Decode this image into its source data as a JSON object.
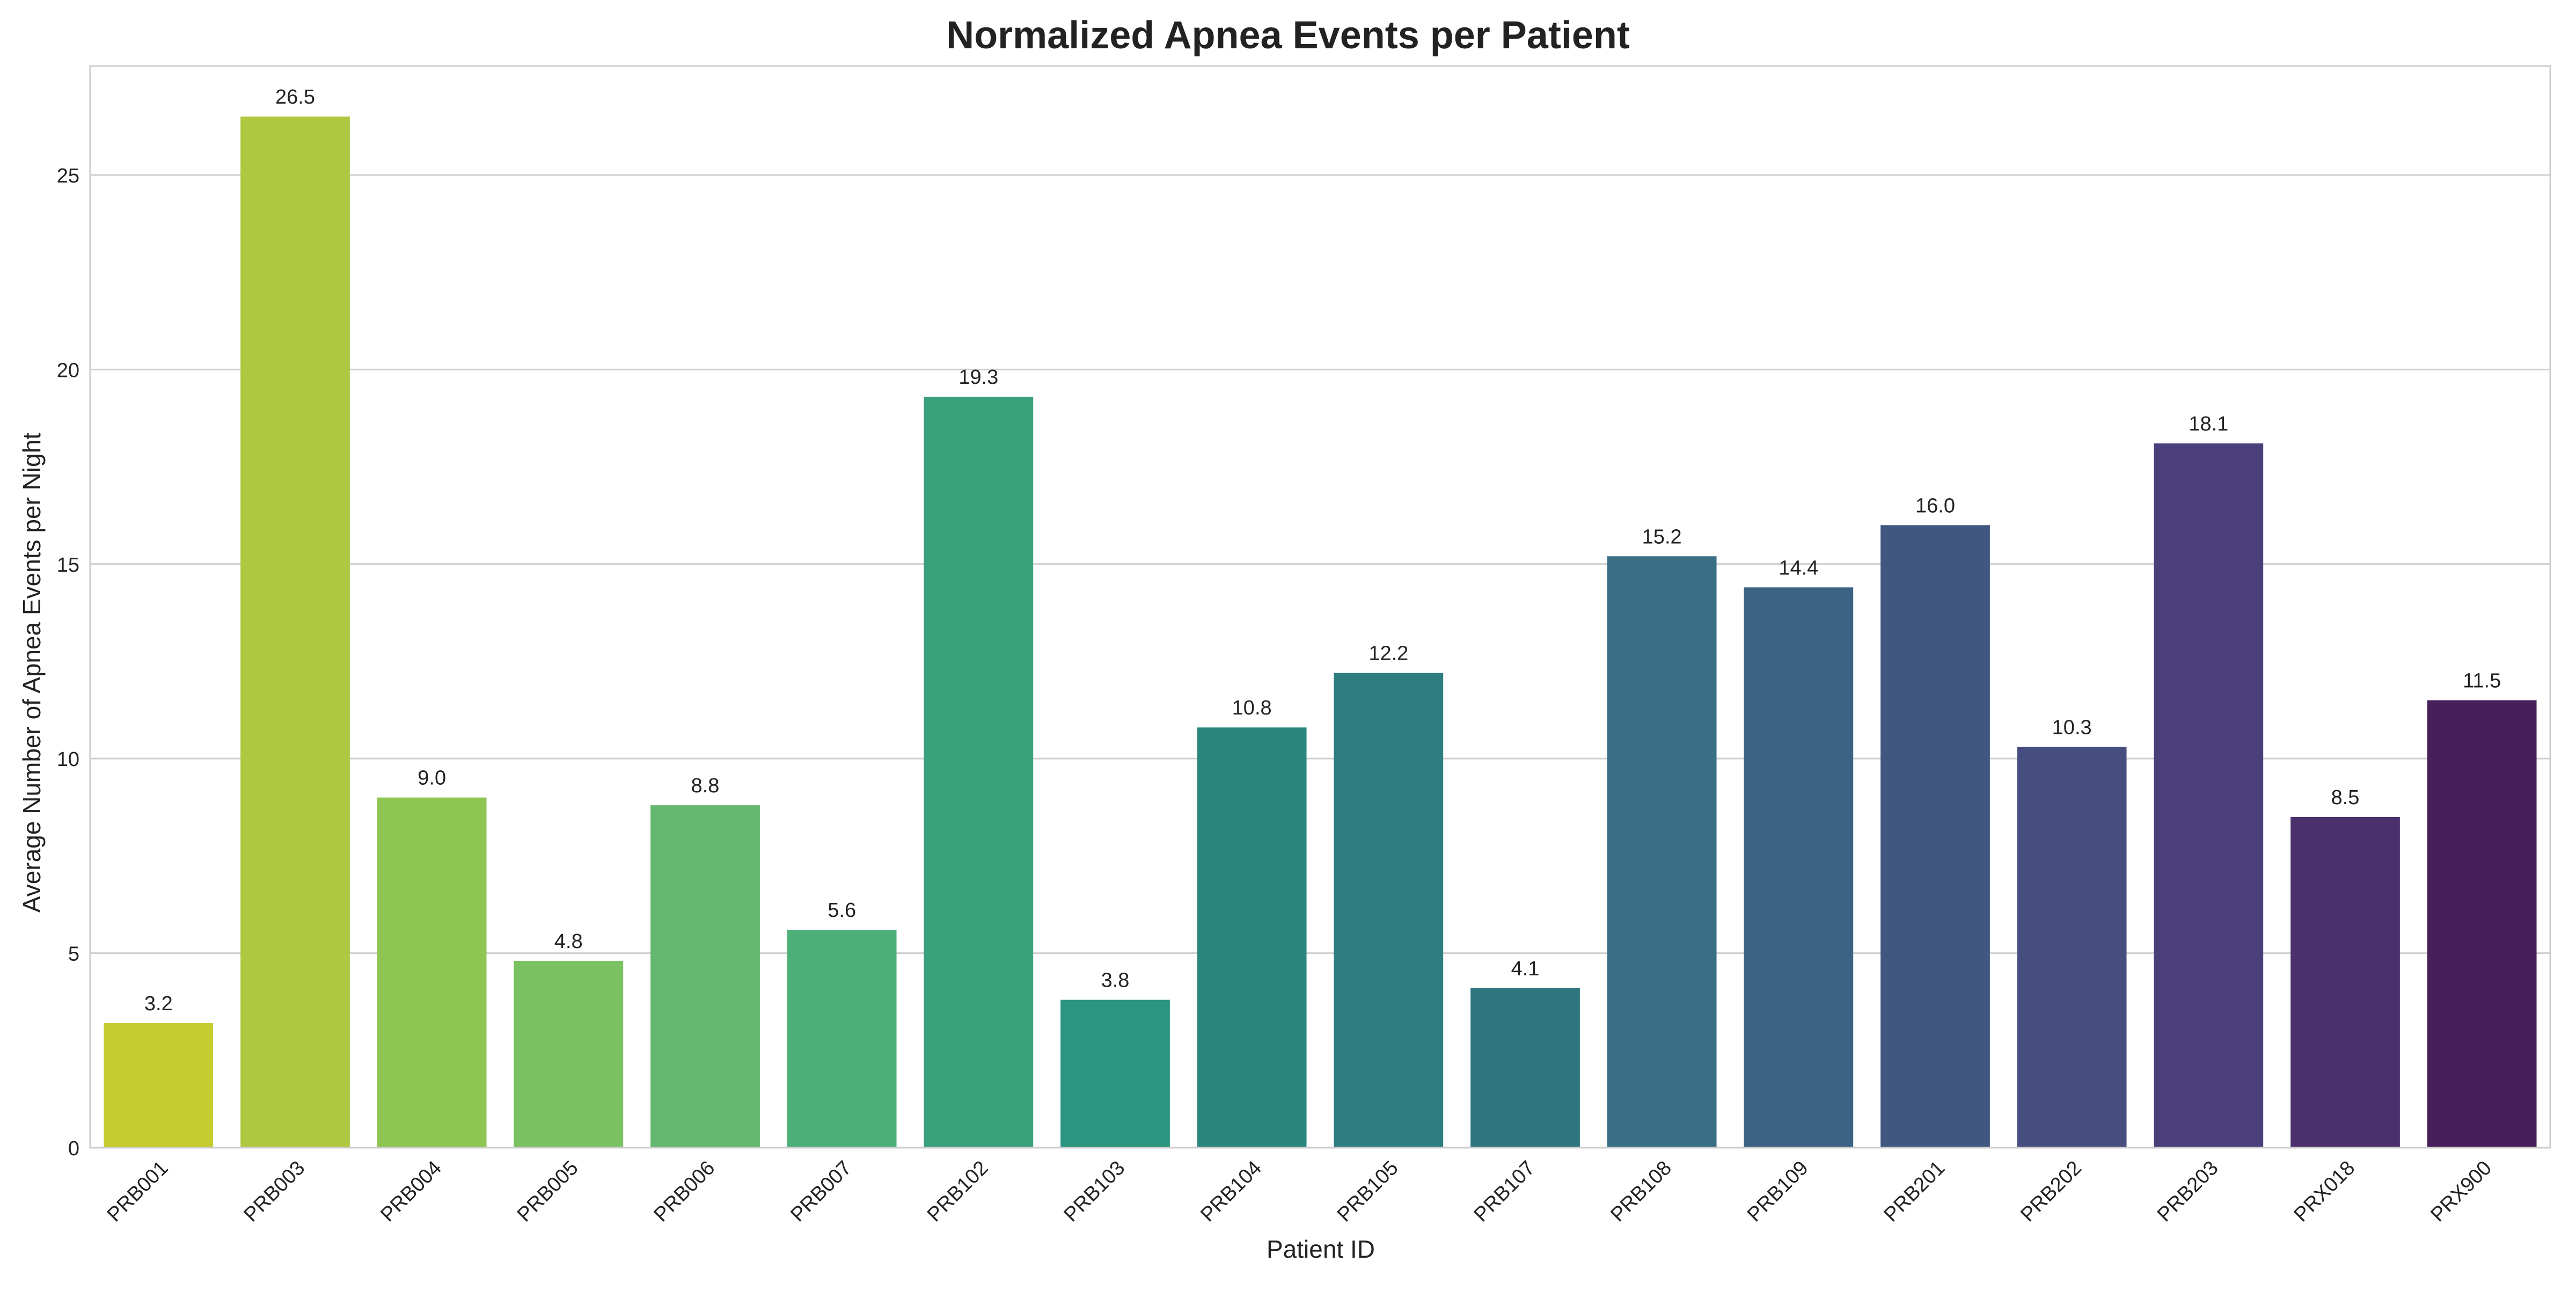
{
  "chart_data": {
    "type": "bar",
    "title": "Normalized Apnea Events per Patient",
    "xlabel": "Patient ID",
    "ylabel": "Average Number of Apnea Events per Night",
    "ylim": [
      0,
      27.8
    ],
    "yticks": [
      0,
      5,
      10,
      15,
      20,
      25
    ],
    "grid": true,
    "legend": "none",
    "categories": [
      "PRB001",
      "PRB003",
      "PRB004",
      "PRB005",
      "PRB006",
      "PRB007",
      "PRB102",
      "PRB103",
      "PRB104",
      "PRB105",
      "PRB107",
      "PRB108",
      "PRB109",
      "PRB201",
      "PRB202",
      "PRB203",
      "PRX018",
      "PRX900"
    ],
    "values": [
      3.2,
      26.5,
      9.0,
      4.8,
      8.8,
      5.6,
      19.3,
      3.8,
      10.8,
      12.2,
      4.1,
      15.2,
      14.4,
      16.0,
      10.3,
      18.1,
      8.5,
      11.5
    ],
    "value_labels": [
      "3.2",
      "26.5",
      "9.0",
      "4.8",
      "8.8",
      "5.6",
      "19.3",
      "3.8",
      "10.8",
      "12.2",
      "4.1",
      "15.2",
      "14.4",
      "16.0",
      "10.3",
      "18.1",
      "8.5",
      "11.5"
    ],
    "colors": [
      "#c6cb30",
      "#aec840",
      "#8fc552",
      "#7ac162",
      "#63b76e",
      "#4daf78",
      "#3aa17c",
      "#2b9580",
      "#2b877d",
      "#2e7d81",
      "#2f757f",
      "#386f85",
      "#3c6383",
      "#405880",
      "#454e7f",
      "#4a3f7a",
      "#4a316e",
      "#471f5a"
    ],
    "colors_note_palette": "viridis_r"
  }
}
